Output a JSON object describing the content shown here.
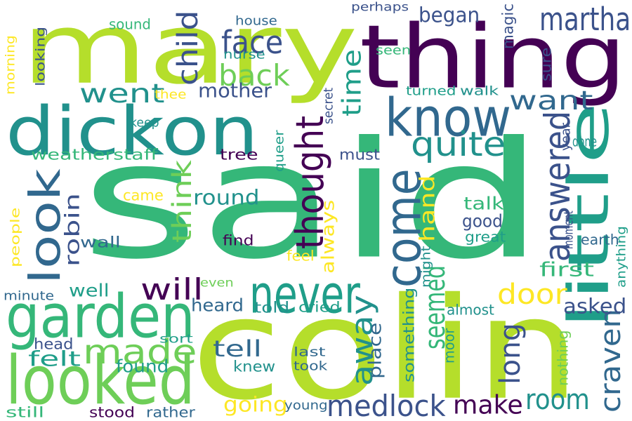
{
  "palette": {
    "background": "#ffffff",
    "dark_purple": "#440154",
    "indigo": "#3b528b",
    "blue": "#31688e",
    "teal": "#21918c",
    "teal_green": "#1f9e89",
    "green": "#35b779",
    "light_green": "#6ece58",
    "yellow_green": "#b5de2b",
    "yellow": "#fde725"
  },
  "words": [
    {
      "text": "said"
    },
    {
      "text": "colin"
    },
    {
      "text": "mary"
    },
    {
      "text": "thing"
    },
    {
      "text": "dickon"
    },
    {
      "text": "little"
    },
    {
      "text": "come"
    },
    {
      "text": "know"
    },
    {
      "text": "garden"
    },
    {
      "text": "looked"
    },
    {
      "text": "look"
    },
    {
      "text": "never"
    },
    {
      "text": "answered"
    },
    {
      "text": "martha"
    },
    {
      "text": "thought"
    },
    {
      "text": "made"
    },
    {
      "text": "will"
    },
    {
      "text": "quite"
    },
    {
      "text": "face"
    },
    {
      "text": "back"
    },
    {
      "text": "went"
    },
    {
      "text": "want"
    },
    {
      "text": "door"
    },
    {
      "text": "think"
    },
    {
      "text": "child"
    },
    {
      "text": "time"
    },
    {
      "text": "seemed"
    },
    {
      "text": "away"
    },
    {
      "text": "long"
    },
    {
      "text": "craven"
    },
    {
      "text": "medlock"
    },
    {
      "text": "room"
    },
    {
      "text": "make"
    },
    {
      "text": "robin"
    },
    {
      "text": "mother"
    },
    {
      "text": "round"
    },
    {
      "text": "felt"
    },
    {
      "text": "tell"
    },
    {
      "text": "going"
    },
    {
      "text": "began"
    },
    {
      "text": "asked"
    },
    {
      "text": "hand"
    },
    {
      "text": "always"
    },
    {
      "text": "first"
    },
    {
      "text": "found"
    },
    {
      "text": "heard"
    },
    {
      "text": "head"
    },
    {
      "text": "knew"
    },
    {
      "text": "good"
    },
    {
      "text": "talk"
    },
    {
      "text": "well"
    },
    {
      "text": "wall"
    },
    {
      "text": "came"
    },
    {
      "text": "weatherstaff"
    },
    {
      "text": "tree"
    },
    {
      "text": "must"
    },
    {
      "text": "told"
    },
    {
      "text": "cried"
    },
    {
      "text": "place"
    },
    {
      "text": "something"
    },
    {
      "text": "moor"
    },
    {
      "text": "magic"
    },
    {
      "text": "sure"
    },
    {
      "text": "year"
    },
    {
      "text": "done"
    },
    {
      "text": "moment"
    },
    {
      "text": "earth"
    },
    {
      "text": "anything"
    },
    {
      "text": "nothing"
    },
    {
      "text": "might"
    },
    {
      "text": "great"
    },
    {
      "text": "almost"
    },
    {
      "text": "secret"
    },
    {
      "text": "queer"
    },
    {
      "text": "find"
    },
    {
      "text": "feel"
    },
    {
      "text": "even"
    },
    {
      "text": "people"
    },
    {
      "text": "minute"
    },
    {
      "text": "sort"
    },
    {
      "text": "last"
    },
    {
      "text": "took"
    },
    {
      "text": "young"
    },
    {
      "text": "stood"
    },
    {
      "text": "rather"
    },
    {
      "text": "still"
    },
    {
      "text": "morning"
    },
    {
      "text": "looking"
    },
    {
      "text": "sound"
    },
    {
      "text": "house"
    },
    {
      "text": "nurse"
    },
    {
      "text": "perhaps"
    },
    {
      "text": "seen"
    },
    {
      "text": "turned"
    },
    {
      "text": "walk"
    },
    {
      "text": "thee"
    },
    {
      "text": "keep"
    }
  ]
}
